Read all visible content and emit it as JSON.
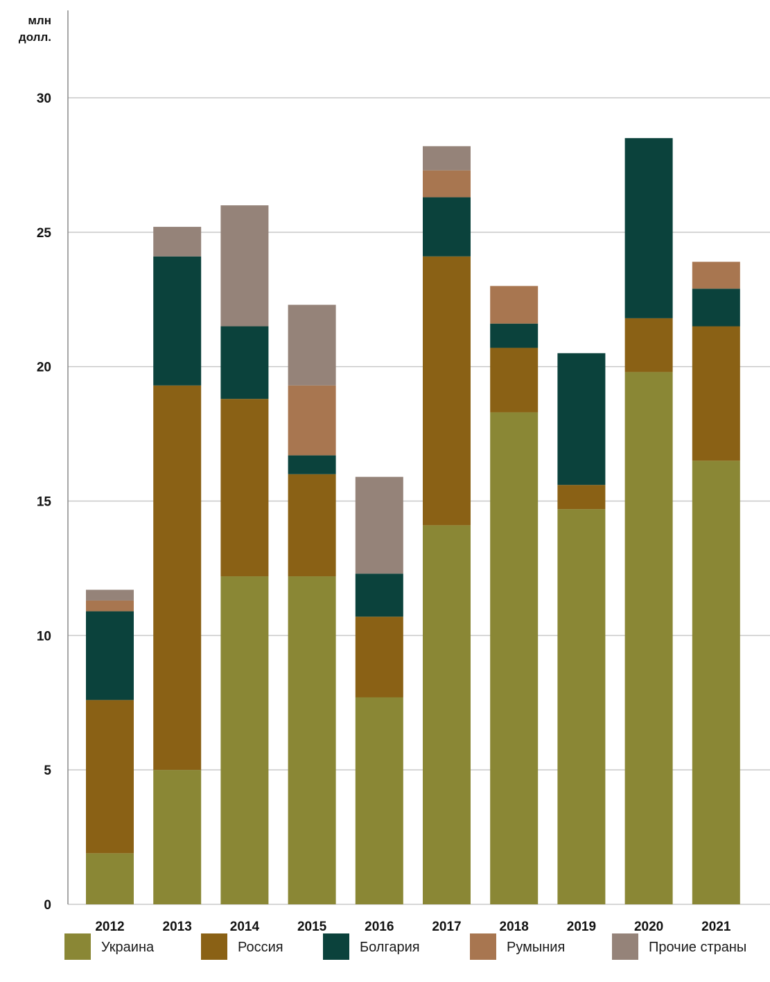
{
  "chart_data": {
    "type": "bar",
    "stacked": true,
    "ylabel": "млн\nдолл.",
    "ylabel_lines": [
      "млн",
      "долл."
    ],
    "ylim": [
      0,
      30
    ],
    "yticks": [
      0,
      5,
      10,
      15,
      20,
      25,
      30
    ],
    "grid": true,
    "legend_position": "bottom",
    "categories": [
      "2012",
      "2013",
      "2014",
      "2015",
      "2016",
      "2017",
      "2018",
      "2019",
      "2020",
      "2021"
    ],
    "series": [
      {
        "name": "Украина",
        "color": "#8a8735",
        "values": [
          1.9,
          5.0,
          12.2,
          12.2,
          7.7,
          14.1,
          18.3,
          14.7,
          19.8,
          16.5
        ]
      },
      {
        "name": "Россия",
        "color": "#8a6115",
        "values": [
          5.7,
          14.3,
          6.6,
          3.8,
          3.0,
          10.0,
          2.4,
          0.9,
          2.0,
          5.0
        ]
      },
      {
        "name": "Болгария",
        "color": "#0b423c",
        "values": [
          3.3,
          4.8,
          2.7,
          0.7,
          1.6,
          2.2,
          0.9,
          4.9,
          6.7,
          1.4
        ]
      },
      {
        "name": "Румыния",
        "color": "#a87650",
        "values": [
          0.4,
          0.0,
          0.0,
          2.6,
          0.0,
          1.0,
          1.4,
          0.0,
          0.0,
          1.0
        ]
      },
      {
        "name": "Прочие страны",
        "color": "#958379",
        "values": [
          0.4,
          1.1,
          4.5,
          3.0,
          3.6,
          0.9,
          0.0,
          0.0,
          0.0,
          0.0
        ]
      }
    ],
    "gridline_color": "#c8c8c8",
    "axis_color": "#888888"
  }
}
